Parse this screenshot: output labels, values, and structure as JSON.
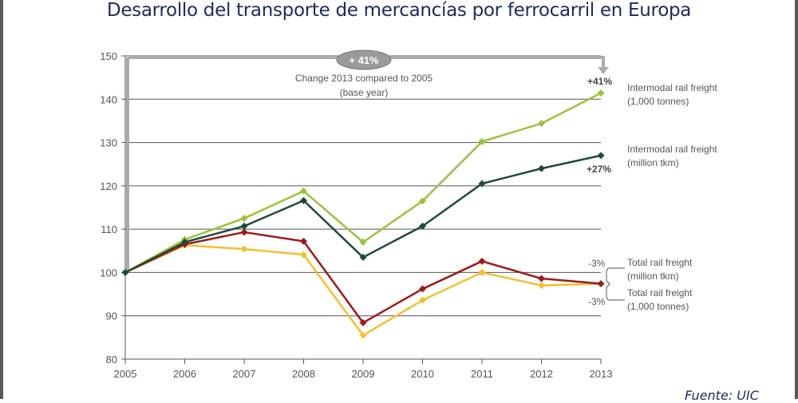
{
  "title": "Desarrollo del transporte de mercancías por ferrocarril en Europa",
  "source": "Fuente: UIC",
  "chart_data": {
    "type": "line",
    "title": "Desarrollo del transporte de mercancías por ferrocarril en Europa",
    "xlabel": "",
    "ylabel": "",
    "x": [
      2005,
      2006,
      2007,
      2008,
      2009,
      2010,
      2011,
      2012,
      2013
    ],
    "x_tick_labels": [
      "2005",
      "2006",
      "2007",
      "2008",
      "2009",
      "2010",
      "2011",
      "2012",
      "2013"
    ],
    "ylim": [
      80,
      150
    ],
    "y_ticks": [
      80,
      90,
      100,
      110,
      120,
      130,
      140,
      150
    ],
    "y_tick_labels": [
      "80",
      "90",
      "100",
      "110",
      "120",
      "130",
      "140",
      "150"
    ],
    "grid": true,
    "series": [
      {
        "name": "Intermodal rail freight (1,000 tonnes)",
        "label_lines": [
          "Intermodal rail freight",
          "(1,000 tonnes)"
        ],
        "color": "#9dc23b",
        "values": [
          100,
          107.6,
          112.5,
          118.8,
          107.0,
          116.5,
          130.2,
          134.4,
          141.4
        ],
        "end_label": "+41%"
      },
      {
        "name": "Intermodal rail freight (million tkm)",
        "label_lines": [
          "Intermodal rail freight",
          "(million tkm)"
        ],
        "color": "#1f4a3a",
        "values": [
          100,
          107.0,
          110.7,
          116.6,
          103.5,
          110.7,
          120.5,
          124.0,
          127.0
        ],
        "end_label": "+27%"
      },
      {
        "name": "Total rail freight (million tkm)",
        "label_lines": [
          "Total rail freight",
          "(million tkm)"
        ],
        "color": "#9b1b1b",
        "values": [
          100,
          106.5,
          109.3,
          107.2,
          88.4,
          96.2,
          102.6,
          98.6,
          97.4
        ],
        "end_label": "-3%"
      },
      {
        "name": "Total rail freight (1,000 tonnes)",
        "label_lines": [
          "Total rail freight",
          "(1,000 tonnes)"
        ],
        "color": "#f2c12e",
        "values": [
          100,
          106.3,
          105.4,
          104.1,
          85.5,
          93.6,
          100.0,
          97.0,
          97.4
        ],
        "end_label": "-3%"
      }
    ],
    "annotations": {
      "badge": "+ 41%",
      "change_line1": "Change 2013 compared to 2005",
      "change_line2": "(base year)"
    },
    "legend": "right"
  }
}
